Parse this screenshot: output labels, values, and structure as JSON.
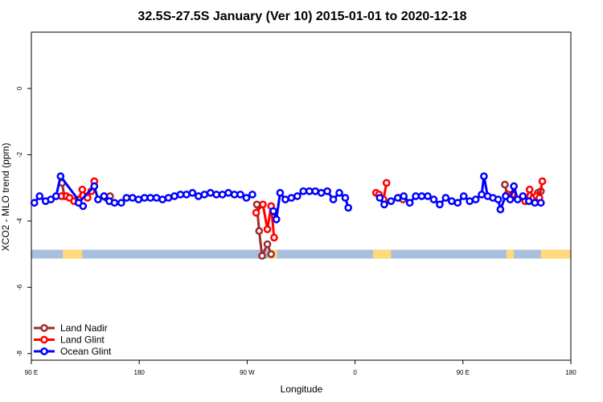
{
  "chart_data": {
    "type": "line",
    "title": "32.5S-27.5S January (Ver 10)   2015-01-01 to 2020-12-18",
    "xlabel": "Longitude",
    "ylabel": "XCO2 - MLO trend (ppm)",
    "xlim": [
      -90,
      270
    ],
    "ylim": [
      -8.2,
      1.7
    ],
    "x_ticks": [
      {
        "value": -90,
        "label": "90 E"
      },
      {
        "value": -18,
        "label": "180"
      },
      {
        "value": 54,
        "label": "90 W"
      },
      {
        "value": 126,
        "label": "0"
      },
      {
        "value": 198,
        "label": "90 E"
      },
      {
        "value": 270,
        "label": "180"
      }
    ],
    "y_ticks": [
      {
        "value": 0,
        "label": "0"
      },
      {
        "value": -2,
        "label": "-2"
      },
      {
        "value": -4,
        "label": "-4"
      },
      {
        "value": -6,
        "label": "-6"
      },
      {
        "value": -8,
        "label": "-8"
      }
    ],
    "land_band": {
      "y": -5,
      "ocean_color": "#a9bfde",
      "land_color": "#ffd97a",
      "land_ranges": [
        [
          -69,
          -56
        ],
        [
          68,
          74
        ],
        [
          138,
          150
        ],
        [
          227,
          232
        ],
        [
          250,
          272
        ]
      ]
    },
    "legend": {
      "position": "bottom-left"
    },
    "series": [
      {
        "name": "Land Nadir",
        "color": "#9b2d2d",
        "segments": [
          [
            [
              -69.5,
              -2.85
            ],
            [
              -68,
              -3.25
            ]
          ],
          [
            [
              -40,
              -3.3
            ],
            [
              -37.5,
              -3.25
            ]
          ],
          [
            [
              60.5,
              -3.5
            ],
            [
              62,
              -4.3
            ],
            [
              64,
              -5.05
            ],
            [
              67.5,
              -4.7
            ],
            [
              70,
              -5.0
            ]
          ],
          [
            [
              155,
              -3.3
            ],
            [
              158,
              -3.35
            ]
          ],
          [
            [
              226,
              -2.9
            ],
            [
              227.5,
              -3.2
            ],
            [
              230,
              -3.25
            ]
          ],
          [
            [
              248,
              -3.15
            ],
            [
              250,
              -3.1
            ]
          ]
        ]
      },
      {
        "name": "Land Glint",
        "color": "#ff0000",
        "segments": [
          [
            [
              -70,
              -3.25
            ],
            [
              -66.5,
              -3.25
            ],
            [
              -64.5,
              -3.3
            ],
            [
              -61.5,
              -3.4
            ],
            [
              -58.5,
              -3.35
            ],
            [
              -56,
              -3.05
            ],
            [
              -52.5,
              -3.3
            ],
            [
              -50,
              -3.1
            ],
            [
              -48,
              -2.8
            ]
          ],
          [
            [
              60,
              -3.75
            ],
            [
              64.5,
              -3.5
            ],
            [
              67.5,
              -4.25
            ],
            [
              70,
              -3.55
            ],
            [
              72,
              -4.5
            ]
          ],
          [
            [
              140,
              -3.15
            ],
            [
              142,
              -3.2
            ],
            [
              145,
              -3.35
            ],
            [
              147,
              -2.85
            ]
          ],
          [
            [
              228,
              -3.2
            ],
            [
              231,
              -3.2
            ]
          ],
          [
            [
              239.5,
              -3.4
            ],
            [
              242.5,
              -3.05
            ],
            [
              245,
              -3.3
            ],
            [
              247,
              -3.25
            ],
            [
              249,
              -3.3
            ],
            [
              251,
              -2.8
            ]
          ]
        ]
      },
      {
        "name": "Ocean Glint",
        "color": "#0000ff",
        "segments": [
          [
            [
              -88,
              -3.45
            ],
            [
              -84.5,
              -3.25
            ],
            [
              -80.5,
              -3.4
            ],
            [
              -77,
              -3.35
            ],
            [
              -73.5,
              -3.25
            ],
            [
              -70.5,
              -2.65
            ],
            [
              -55.5,
              -3.55
            ],
            [
              -58.5,
              -3.45
            ],
            [
              -48,
              -2.95
            ],
            [
              -45.5,
              -3.35
            ],
            [
              -41.5,
              -3.25
            ],
            [
              -38,
              -3.4
            ],
            [
              -34.5,
              -3.45
            ],
            [
              -30,
              -3.45
            ],
            [
              -26.5,
              -3.3
            ],
            [
              -22.5,
              -3.3
            ],
            [
              -18.5,
              -3.35
            ],
            [
              -14.5,
              -3.3
            ],
            [
              -10.5,
              -3.3
            ],
            [
              -6.5,
              -3.3
            ],
            [
              -2.5,
              -3.35
            ],
            [
              1.5,
              -3.3
            ],
            [
              5.5,
              -3.25
            ],
            [
              9.5,
              -3.2
            ],
            [
              13.5,
              -3.2
            ],
            [
              17.5,
              -3.15
            ],
            [
              21.5,
              -3.25
            ],
            [
              25.5,
              -3.2
            ],
            [
              29.5,
              -3.15
            ],
            [
              33.5,
              -3.2
            ],
            [
              37.5,
              -3.2
            ],
            [
              41.5,
              -3.15
            ],
            [
              45.5,
              -3.2
            ],
            [
              49.5,
              -3.2
            ],
            [
              53.5,
              -3.3
            ],
            [
              57.5,
              -3.2
            ]
          ],
          [
            [
              71.5,
              -3.7
            ],
            [
              73.5,
              -3.95
            ],
            [
              76,
              -3.15
            ],
            [
              79.5,
              -3.35
            ],
            [
              83.5,
              -3.3
            ],
            [
              87.5,
              -3.25
            ],
            [
              91.5,
              -3.1
            ],
            [
              95.5,
              -3.1
            ],
            [
              99.5,
              -3.1
            ],
            [
              103.5,
              -3.15
            ],
            [
              107.5,
              -3.1
            ],
            [
              111.5,
              -3.35
            ],
            [
              115.5,
              -3.15
            ],
            [
              119.5,
              -3.3
            ],
            [
              121.5,
              -3.6
            ]
          ],
          [
            [
              142.5,
              -3.3
            ],
            [
              145.5,
              -3.5
            ],
            [
              150,
              -3.4
            ],
            [
              154.5,
              -3.3
            ],
            [
              158.5,
              -3.25
            ],
            [
              162.5,
              -3.45
            ],
            [
              166.5,
              -3.25
            ],
            [
              170.5,
              -3.25
            ],
            [
              174.5,
              -3.25
            ],
            [
              178.5,
              -3.35
            ],
            [
              182.5,
              -3.5
            ],
            [
              186.5,
              -3.3
            ],
            [
              190.5,
              -3.4
            ],
            [
              194.5,
              -3.45
            ],
            [
              198.5,
              -3.25
            ],
            [
              202.5,
              -3.4
            ],
            [
              206.5,
              -3.35
            ],
            [
              210.5,
              -3.2
            ],
            [
              212,
              -2.65
            ],
            [
              214.5,
              -3.25
            ],
            [
              218,
              -3.3
            ],
            [
              221.5,
              -3.35
            ],
            [
              223,
              -3.65
            ],
            [
              226.5,
              -3.25
            ],
            [
              229.5,
              -3.35
            ],
            [
              232,
              -2.95
            ],
            [
              234.5,
              -3.35
            ],
            [
              238,
              -3.25
            ],
            [
              242,
              -3.4
            ],
            [
              246,
              -3.45
            ],
            [
              250,
              -3.45
            ]
          ]
        ]
      }
    ]
  }
}
